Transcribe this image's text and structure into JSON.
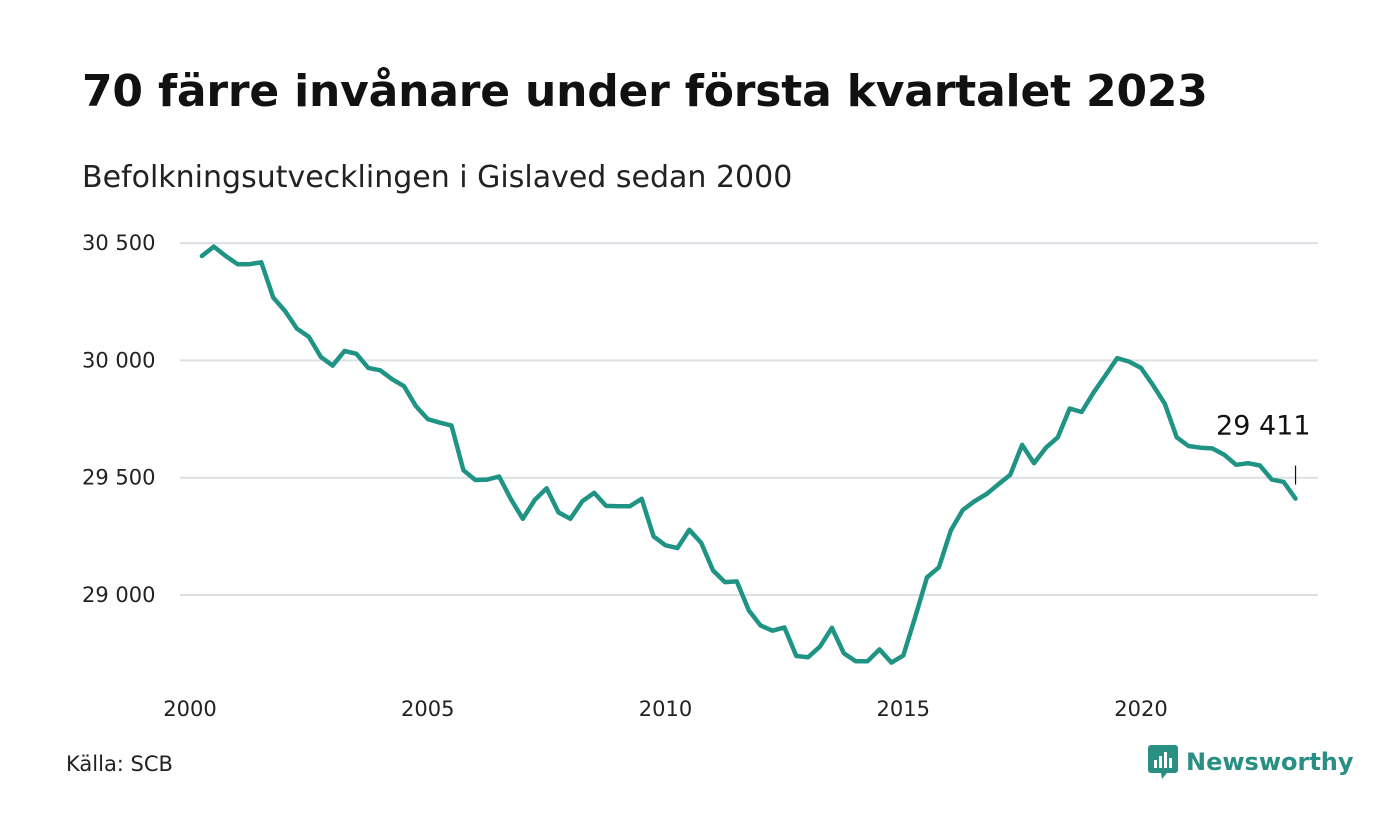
{
  "title": "70 färre invånare under första kvartalet 2023",
  "subtitle": "Befolkningsutvecklingen i Gislaved sedan 2000",
  "source": "Källa: SCB",
  "brand": {
    "name": "Newsworthy",
    "color": "#2a8f83",
    "icon": "bar-chart-chat-icon"
  },
  "chart_data": {
    "type": "line",
    "title": "",
    "xlabel": "",
    "ylabel": "",
    "xlim": [
      2000,
      2023.5
    ],
    "ylim": [
      28700,
      30500
    ],
    "x_ticks": [
      {
        "value": 2000,
        "label": "2000"
      },
      {
        "value": 2005,
        "label": "2005"
      },
      {
        "value": 2010,
        "label": "2010"
      },
      {
        "value": 2015,
        "label": "2015"
      },
      {
        "value": 2020,
        "label": "2020"
      }
    ],
    "y_ticks": [
      {
        "value": 29000,
        "label": "29 000"
      },
      {
        "value": 29500,
        "label": "29 500"
      },
      {
        "value": 30000,
        "label": "30 000"
      },
      {
        "value": 30500,
        "label": "30 500"
      }
    ],
    "grid": true,
    "legend": "none",
    "line_color": "#1f9484",
    "end_label": "29 411",
    "series": [
      {
        "x": [
          2000.25,
          2000.5,
          2000.75,
          2001.0,
          2001.25,
          2001.5,
          2001.75,
          2002.0,
          2002.25,
          2002.5,
          2002.75,
          2003.0,
          2003.25,
          2003.5,
          2003.75,
          2004.0,
          2004.25,
          2004.5,
          2004.75,
          2005.0,
          2005.25,
          2005.5,
          2005.75,
          2006.0,
          2006.25,
          2006.5,
          2006.75,
          2007.0,
          2007.25,
          2007.5,
          2007.75,
          2008.0,
          2008.25,
          2008.5,
          2008.75,
          2009.0,
          2009.25,
          2009.5,
          2009.75,
          2010.0,
          2010.25,
          2010.5,
          2010.75,
          2011.0,
          2011.25,
          2011.5,
          2011.75,
          2012.0,
          2012.25,
          2012.5,
          2012.75,
          2013.0,
          2013.25,
          2013.5,
          2013.75,
          2014.0,
          2014.25,
          2014.5,
          2014.75,
          2015.0,
          2015.25,
          2015.5,
          2015.75,
          2016.0,
          2016.25,
          2016.5,
          2016.75,
          2017.0,
          2017.25,
          2017.5,
          2017.75,
          2018.0,
          2018.25,
          2018.5,
          2018.75,
          2019.0,
          2019.25,
          2019.5,
          2019.75,
          2020.0,
          2020.25,
          2020.5,
          2020.75,
          2021.0,
          2021.25,
          2021.5,
          2021.75,
          2022.0,
          2022.25,
          2022.5,
          2022.75,
          2023.0,
          2023.25
        ],
        "values": [
          30445,
          30485,
          30445,
          30410,
          30410,
          30418,
          30268,
          30210,
          30135,
          30100,
          30015,
          29978,
          30040,
          30028,
          29968,
          29958,
          29920,
          29890,
          29805,
          29750,
          29735,
          29722,
          29532,
          29490,
          29492,
          29505,
          29408,
          29325,
          29405,
          29455,
          29352,
          29325,
          29400,
          29435,
          29380,
          29378,
          29378,
          29410,
          29250,
          29212,
          29200,
          29278,
          29222,
          29105,
          29055,
          29058,
          28935,
          28870,
          28848,
          28862,
          28740,
          28735,
          28780,
          28860,
          28752,
          28718,
          28718,
          28768,
          28712,
          28742,
          28905,
          29075,
          29118,
          29275,
          29362,
          29400,
          29430,
          29472,
          29512,
          29640,
          29562,
          29628,
          29672,
          29795,
          29780,
          29862,
          29935,
          30010,
          29995,
          29968,
          29895,
          29815,
          29672,
          29635,
          29628,
          29625,
          29598,
          29555,
          29562,
          29552,
          29492,
          29482,
          29411
        ]
      }
    ]
  }
}
